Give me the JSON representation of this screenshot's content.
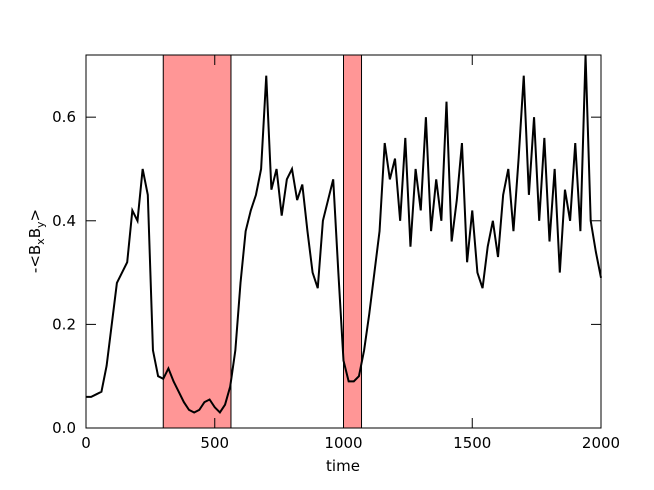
{
  "chart_data": {
    "type": "line",
    "x_label": "time",
    "y_label": [
      "-<B",
      "x",
      "B",
      "y",
      ">"
    ],
    "xlim": [
      0,
      2000
    ],
    "xticks": [
      0,
      500,
      1000,
      1500,
      2000
    ],
    "ylim": [
      0,
      0.72
    ],
    "yticks": [
      {
        "value": 0,
        "label": "0.0"
      },
      0.2,
      0.4,
      0.6
    ],
    "spans": [
      {
        "x": [
          300,
          563
        ],
        "color": "#ff9696"
      },
      {
        "x": [
          1000,
          1070
        ],
        "color": "#ff9696"
      }
    ],
    "x": [
      0,
      20,
      40,
      60,
      80,
      100,
      120,
      140,
      160,
      180,
      200,
      220,
      240,
      260,
      280,
      300,
      320,
      340,
      360,
      380,
      400,
      420,
      440,
      460,
      480,
      500,
      520,
      540,
      560,
      580,
      600,
      620,
      640,
      660,
      680,
      700,
      720,
      740,
      760,
      780,
      800,
      820,
      840,
      860,
      880,
      900,
      920,
      940,
      960,
      980,
      1000,
      1020,
      1040,
      1060,
      1080,
      1100,
      1120,
      1140,
      1160,
      1180,
      1200,
      1220,
      1240,
      1260,
      1280,
      1300,
      1320,
      1340,
      1360,
      1380,
      1400,
      1420,
      1440,
      1460,
      1480,
      1500,
      1520,
      1540,
      1560,
      1580,
      1600,
      1620,
      1640,
      1660,
      1680,
      1700,
      1720,
      1740,
      1760,
      1780,
      1800,
      1820,
      1840,
      1860,
      1880,
      1900,
      1920,
      1940,
      1960,
      1980,
      2000
    ],
    "series": [
      {
        "color": "#000000",
        "values": [
          0.06,
          0.06,
          0.065,
          0.07,
          0.12,
          0.2,
          0.28,
          0.3,
          0.32,
          0.42,
          0.4,
          0.5,
          0.45,
          0.15,
          0.1,
          0.095,
          0.115,
          0.09,
          0.07,
          0.05,
          0.035,
          0.03,
          0.035,
          0.05,
          0.055,
          0.04,
          0.03,
          0.045,
          0.08,
          0.15,
          0.28,
          0.38,
          0.42,
          0.45,
          0.5,
          0.68,
          0.46,
          0.5,
          0.41,
          0.48,
          0.5,
          0.44,
          0.47,
          0.38,
          0.3,
          0.27,
          0.4,
          0.44,
          0.48,
          0.3,
          0.13,
          0.09,
          0.09,
          0.1,
          0.15,
          0.22,
          0.3,
          0.38,
          0.55,
          0.48,
          0.52,
          0.4,
          0.56,
          0.35,
          0.5,
          0.42,
          0.6,
          0.38,
          0.48,
          0.4,
          0.63,
          0.36,
          0.44,
          0.55,
          0.32,
          0.42,
          0.3,
          0.27,
          0.35,
          0.4,
          0.33,
          0.45,
          0.5,
          0.38,
          0.52,
          0.68,
          0.45,
          0.6,
          0.4,
          0.56,
          0.36,
          0.5,
          0.3,
          0.46,
          0.4,
          0.55,
          0.38,
          0.72,
          0.4,
          0.34,
          0.29
        ]
      }
    ]
  }
}
